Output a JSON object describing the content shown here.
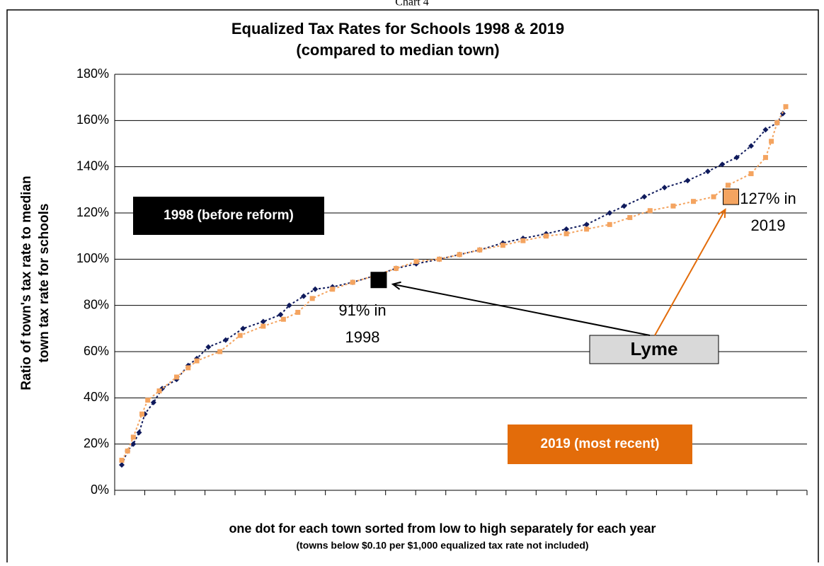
{
  "page_title": "Chart 4",
  "chart_data": {
    "type": "scatter",
    "title": "Equalized Tax Rates for Schools 1998 & 2019",
    "subtitle": "(compared to median town)",
    "y_label_lines": [
      "Ratio of town's tax rate to median",
      "town tax rate for schools"
    ],
    "x_label": "one dot for each town sorted from low to high separately for each year",
    "x_note": "(towns below $0.10 per $1,000 equalized tax rate not included)",
    "xlim": [
      0,
      230
    ],
    "ylim": [
      0,
      180
    ],
    "yticks": [
      {
        "value": 0,
        "label": "0%"
      },
      {
        "value": 20,
        "label": "20%"
      },
      {
        "value": 40,
        "label": "40%"
      },
      {
        "value": 60,
        "label": "60%"
      },
      {
        "value": 80,
        "label": "80%"
      },
      {
        "value": 100,
        "label": "100%"
      },
      {
        "value": 120,
        "label": "120%"
      },
      {
        "value": 140,
        "label": "140%"
      },
      {
        "value": 160,
        "label": "160%"
      },
      {
        "value": 180,
        "label": "180%"
      }
    ],
    "grid": true,
    "series": [
      {
        "name": "1998 (before reform)",
        "color": "#0f1a5c",
        "marker": "diamond",
        "x": [
          0,
          2,
          4,
          6,
          8,
          11,
          14,
          19,
          23,
          26,
          30,
          36,
          42,
          49,
          55,
          58,
          63,
          67,
          73,
          80,
          88,
          95,
          102,
          110,
          117,
          124,
          132,
          139,
          147,
          154,
          161,
          169,
          174,
          181,
          188,
          196,
          203,
          208,
          213,
          218,
          223,
          227,
          229
        ],
        "values": [
          11,
          17,
          20,
          25,
          33,
          38,
          44,
          48,
          54,
          57,
          62,
          65,
          70,
          73,
          76,
          80,
          84,
          87,
          88,
          90,
          93,
          96,
          98,
          100,
          102,
          104,
          107,
          109,
          111,
          113,
          115,
          120,
          123,
          127,
          131,
          134,
          138,
          141,
          144,
          149,
          156,
          159,
          163
        ]
      },
      {
        "name": "2019 (most recent)",
        "color": "#f4a460",
        "marker": "square",
        "x": [
          0,
          2,
          4,
          7,
          9,
          13,
          19,
          23,
          26,
          34,
          41,
          49,
          56,
          61,
          66,
          73,
          80,
          88,
          95,
          102,
          110,
          117,
          124,
          132,
          139,
          147,
          154,
          161,
          169,
          176,
          183,
          191,
          198,
          205,
          210,
          218,
          223,
          225,
          227,
          230
        ],
        "values": [
          13,
          17,
          23,
          33,
          39,
          43,
          49,
          53,
          56,
          60,
          67,
          71,
          74,
          77,
          83,
          87,
          90,
          93,
          96,
          99,
          100,
          102,
          104,
          106,
          108,
          110,
          111,
          113,
          115,
          118,
          121,
          123,
          125,
          127,
          132,
          137,
          144,
          151,
          159,
          166
        ]
      }
    ],
    "highlight": {
      "name": "Lyme",
      "points": [
        {
          "x": 89,
          "value": 91,
          "label_lines": [
            "91% in",
            "1998"
          ],
          "color": "#000000"
        },
        {
          "x": 211,
          "value": 127,
          "label_lines": [
            "127% in",
            "2019"
          ],
          "color": "#f4a460"
        }
      ]
    },
    "legend_boxes": [
      {
        "text": "1998 (before reform)",
        "color": "#000000"
      },
      {
        "text": "2019 (most recent)",
        "color": "#e36c0a"
      }
    ]
  }
}
